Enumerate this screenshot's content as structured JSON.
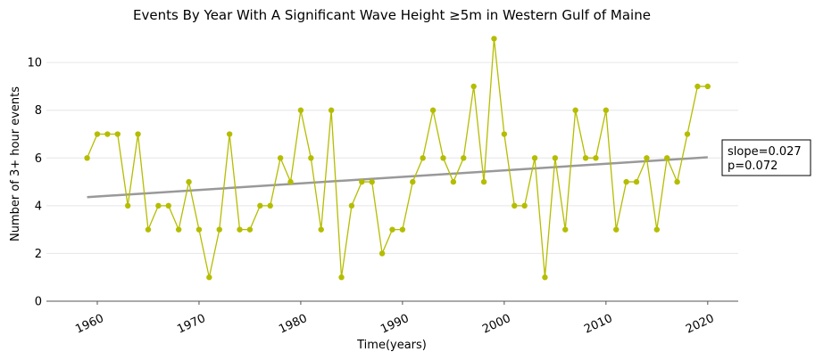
{
  "chart_data": {
    "type": "line",
    "title": "Events By Year With A Significant Wave Height ≥5m in Western Gulf of Maine",
    "xlabel": "Time(years)",
    "ylabel": "Number of 3+ hour events",
    "xlim": [
      1955,
      2023
    ],
    "ylim": [
      0,
      11.5
    ],
    "xticks": [
      1960,
      1970,
      1980,
      1990,
      2000,
      2010,
      2020
    ],
    "yticks": [
      0,
      2,
      4,
      6,
      8,
      10
    ],
    "grid": "horizontal",
    "series": [
      {
        "color": "#b5bd00",
        "x": [
          1959,
          1960,
          1961,
          1962,
          1963,
          1964,
          1965,
          1966,
          1967,
          1968,
          1969,
          1970,
          1971,
          1972,
          1973,
          1974,
          1975,
          1976,
          1977,
          1978,
          1979,
          1980,
          1981,
          1982,
          1983,
          1984,
          1985,
          1986,
          1987,
          1988,
          1989,
          1990,
          1991,
          1992,
          1993,
          1994,
          1995,
          1996,
          1997,
          1998,
          1999,
          2000,
          2001,
          2002,
          2003,
          2004,
          2005,
          2006,
          2007,
          2008,
          2009,
          2010,
          2011,
          2012,
          2013,
          2014,
          2015,
          2016,
          2017,
          2018,
          2019,
          2020
        ],
        "values": [
          6,
          7,
          7,
          7,
          4,
          7,
          3,
          4,
          4,
          3,
          5,
          3,
          1,
          3,
          7,
          3,
          3,
          4,
          4,
          6,
          5,
          8,
          6,
          3,
          8,
          1,
          4,
          5,
          5,
          2,
          3,
          3,
          5,
          6,
          8,
          6,
          5,
          6,
          9,
          5,
          11,
          7,
          4,
          4,
          6,
          1,
          6,
          3,
          8,
          6,
          6,
          8,
          3,
          5,
          5,
          6,
          3,
          6,
          5,
          7,
          9,
          9
        ]
      }
    ],
    "trend": {
      "color": "#999999",
      "x": [
        1959,
        2020
      ],
      "values": [
        4.36,
        6.03
      ]
    },
    "annotation": {
      "line1": "slope=0.027",
      "line2": "p=0.072"
    }
  }
}
